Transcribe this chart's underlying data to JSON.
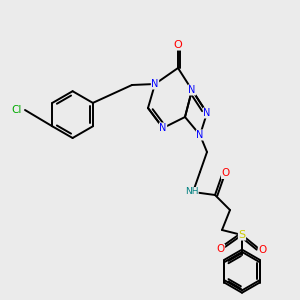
{
  "background_color": "#ebebeb",
  "bond_color": "#000000",
  "atom_colors": {
    "N": "#0000ff",
    "O": "#ff0000",
    "Cl": "#00aa00",
    "S": "#cccc00",
    "NH": "#008080",
    "C": "#000000"
  },
  "figsize": [
    3.0,
    3.0
  ],
  "dpi": 100,
  "lw": 1.4,
  "fs": 7.0
}
